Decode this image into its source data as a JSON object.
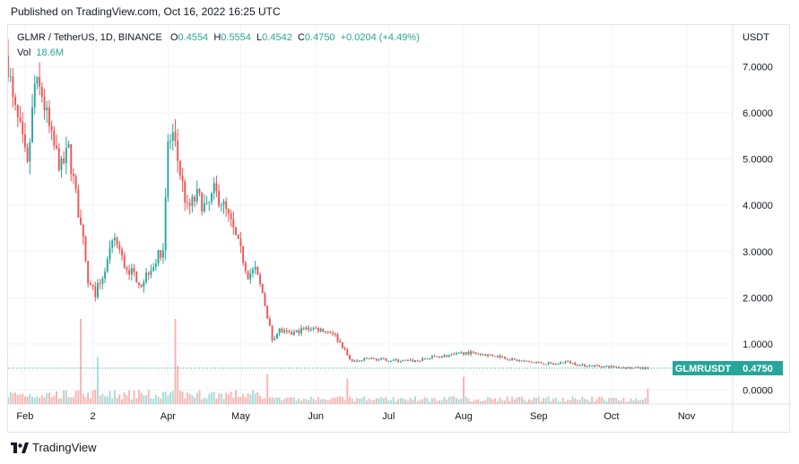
{
  "header": {
    "published": "Published on TradingView.com, Oct 16, 2022 16:25 UTC"
  },
  "legend": {
    "symbol": "GLMR / TetherUS, 1D, BINANCE",
    "open_label": "O",
    "open": "0.4554",
    "high_label": "H",
    "high": "0.5554",
    "low_label": "L",
    "low": "0.4542",
    "close_label": "C",
    "close": "0.4750",
    "change": "+0.0204 (+4.49%)",
    "vol_label": "Vol",
    "vol": "18.6M"
  },
  "axis": {
    "currency": "USDT"
  },
  "footer": {
    "brand": "TradingView"
  },
  "colors": {
    "up": "#26a69a",
    "down": "#ef5350",
    "vol_up": "#a6dbd6",
    "vol_down": "#f7b4b2",
    "grid": "#f0f3fa",
    "badge": "#26a69a"
  },
  "chart_data": {
    "type": "candlestick",
    "symbol": "GLMRUSDT",
    "last_price": "0.4750",
    "y_ticks": [
      "7.0000",
      "6.0000",
      "5.0000",
      "4.0000",
      "3.0000",
      "2.0000",
      "1.0000",
      "0.0000"
    ],
    "y_tick_values": [
      7,
      6,
      5,
      4,
      3,
      2,
      1,
      0
    ],
    "ylim": [
      -0.3,
      7.9
    ],
    "x_ticks": [
      "Feb",
      "2",
      "Apr",
      "May",
      "Jun",
      "Jul",
      "Aug",
      "Sep",
      "Oct",
      "Nov"
    ],
    "x_tick_dates": [
      "2022-02-01",
      "2022-03-01",
      "2022-04-01",
      "2022-05-01",
      "2022-06-01",
      "2022-07-01",
      "2022-08-01",
      "2022-09-01",
      "2022-10-01",
      "2022-11-01"
    ],
    "xlim": [
      "2022-01-25",
      "2022-11-20"
    ],
    "close_anchors": [
      [
        "2022-01-25",
        7.1
      ],
      [
        "2022-01-27",
        6.2
      ],
      [
        "2022-01-30",
        5.6
      ],
      [
        "2022-02-02",
        4.8
      ],
      [
        "2022-02-05",
        6.6
      ],
      [
        "2022-02-08",
        6.4
      ],
      [
        "2022-02-12",
        5.4
      ],
      [
        "2022-02-16",
        4.8
      ],
      [
        "2022-02-19",
        5.2
      ],
      [
        "2022-02-22",
        4.2
      ],
      [
        "2022-02-25",
        3.2
      ],
      [
        "2022-02-27",
        2.3
      ],
      [
        "2022-03-02",
        2.1
      ],
      [
        "2022-03-06",
        2.6
      ],
      [
        "2022-03-10",
        3.3
      ],
      [
        "2022-03-14",
        2.7
      ],
      [
        "2022-03-18",
        2.5
      ],
      [
        "2022-03-21",
        2.3
      ],
      [
        "2022-03-24",
        2.6
      ],
      [
        "2022-03-27",
        2.8
      ],
      [
        "2022-03-30",
        3.1
      ],
      [
        "2022-04-01",
        5.3
      ],
      [
        "2022-04-03",
        5.5
      ],
      [
        "2022-04-06",
        4.7
      ],
      [
        "2022-04-09",
        3.9
      ],
      [
        "2022-04-13",
        4.2
      ],
      [
        "2022-04-17",
        3.9
      ],
      [
        "2022-04-20",
        4.3
      ],
      [
        "2022-04-23",
        4.1
      ],
      [
        "2022-04-27",
        3.6
      ],
      [
        "2022-05-01",
        3.0
      ],
      [
        "2022-05-04",
        2.5
      ],
      [
        "2022-05-07",
        2.6
      ],
      [
        "2022-05-10",
        2.1
      ],
      [
        "2022-05-12",
        1.6
      ],
      [
        "2022-05-14",
        1.1
      ],
      [
        "2022-05-17",
        1.3
      ],
      [
        "2022-05-21",
        1.2
      ],
      [
        "2022-05-26",
        1.3
      ],
      [
        "2022-05-30",
        1.35
      ],
      [
        "2022-06-04",
        1.3
      ],
      [
        "2022-06-08",
        1.25
      ],
      [
        "2022-06-12",
        0.95
      ],
      [
        "2022-06-15",
        0.65
      ],
      [
        "2022-06-18",
        0.62
      ],
      [
        "2022-06-22",
        0.68
      ],
      [
        "2022-06-28",
        0.66
      ],
      [
        "2022-07-05",
        0.64
      ],
      [
        "2022-07-12",
        0.63
      ],
      [
        "2022-07-20",
        0.72
      ],
      [
        "2022-07-28",
        0.76
      ],
      [
        "2022-08-02",
        0.82
      ],
      [
        "2022-08-08",
        0.78
      ],
      [
        "2022-08-15",
        0.74
      ],
      [
        "2022-08-22",
        0.65
      ],
      [
        "2022-08-30",
        0.6
      ],
      [
        "2022-09-08",
        0.56
      ],
      [
        "2022-09-12",
        0.62
      ],
      [
        "2022-09-18",
        0.54
      ],
      [
        "2022-09-26",
        0.52
      ],
      [
        "2022-10-03",
        0.5
      ],
      [
        "2022-10-10",
        0.48
      ],
      [
        "2022-10-16",
        0.475
      ]
    ],
    "volume_spikes": [
      [
        "2022-02-24",
        1.0
      ],
      [
        "2022-03-03",
        0.55
      ],
      [
        "2022-04-04",
        1.0
      ],
      [
        "2022-04-05",
        0.45
      ],
      [
        "2022-05-12",
        0.35
      ],
      [
        "2022-06-14",
        0.3
      ],
      [
        "2022-08-01",
        0.32
      ],
      [
        "2022-10-16",
        0.18
      ]
    ]
  }
}
